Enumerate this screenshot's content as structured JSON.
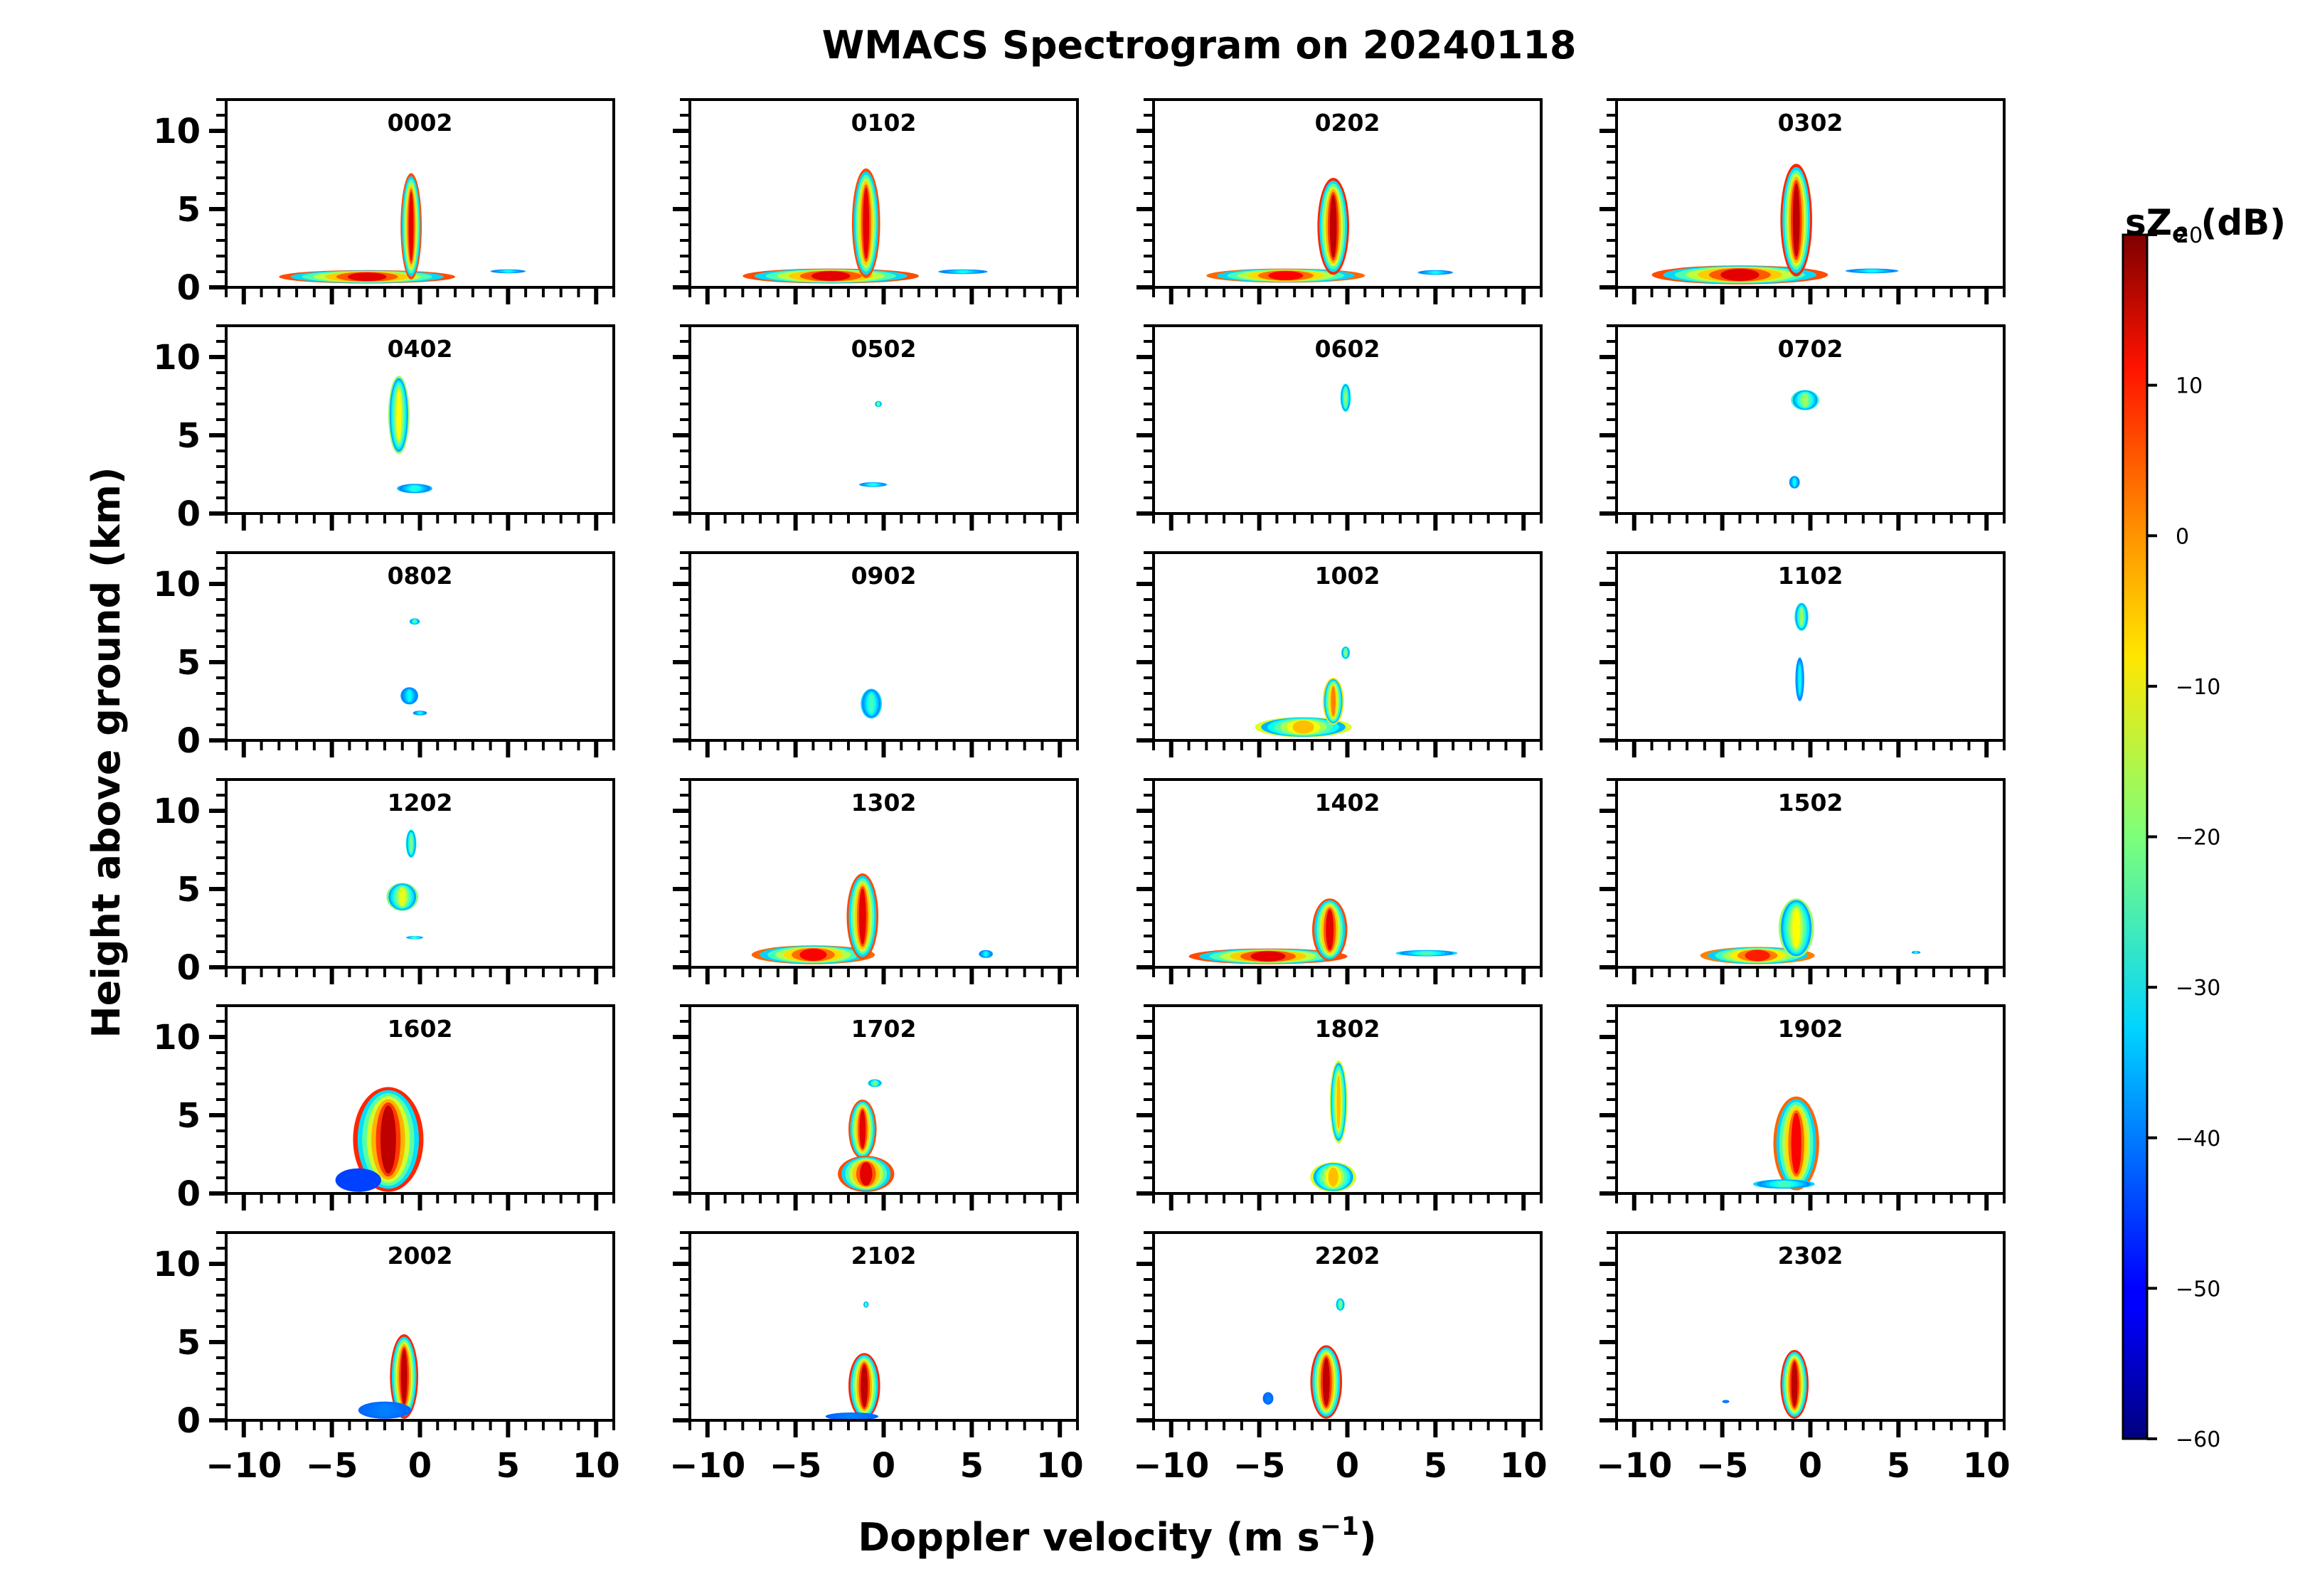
{
  "title": "WMACS Spectrogram on 20240118",
  "xlabel": "Doppler velocity (m s",
  "xlabel_sup": "−1",
  "xlabel_end": ")",
  "ylabel": "Height above ground (km)",
  "colorbar": {
    "label": "sZ",
    "label_sub": "e",
    "label_unit": " (dB)",
    "range": [
      -60,
      20
    ],
    "ticks": [
      20,
      10,
      0,
      -10,
      -20,
      -30,
      -40,
      -50,
      -60
    ],
    "tick_labels": [
      "20",
      "10",
      "0",
      "−10",
      "−20",
      "−30",
      "−40",
      "−50",
      "−60"
    ]
  },
  "chart_data": {
    "type": "heatmap",
    "title": "WMACS Spectrogram on 20240118",
    "xlabel": "Doppler velocity (m s−1)",
    "ylabel": "Height above ground (km)",
    "xlim": [
      -11,
      11
    ],
    "ylim": [
      0,
      12
    ],
    "xticks": [
      -10,
      -5,
      0,
      5,
      10
    ],
    "xtick_labels": [
      "−10",
      "−5",
      "0",
      "5",
      "10"
    ],
    "yticks": [
      0,
      5,
      10
    ],
    "ytick_labels": [
      "0",
      "5",
      "10"
    ],
    "colorbar_range_dB": [
      -60,
      20
    ],
    "panels": [
      {
        "time": "0002",
        "blobs": [
          {
            "v": -3.0,
            "h0": 0.25,
            "h1": 1.1,
            "w": 10.0,
            "peak": 12
          },
          {
            "v": -0.5,
            "h0": 0.5,
            "h1": 7.3,
            "w": 1.2,
            "peak": 12
          },
          {
            "v": 5.0,
            "h0": 0.9,
            "h1": 1.15,
            "w": 2.0,
            "peak": -30
          }
        ]
      },
      {
        "time": "0102",
        "blobs": [
          {
            "v": -3.0,
            "h0": 0.25,
            "h1": 1.2,
            "w": 10.0,
            "peak": 12
          },
          {
            "v": -1.0,
            "h0": 0.6,
            "h1": 7.6,
            "w": 1.6,
            "peak": 12
          },
          {
            "v": 4.5,
            "h0": 0.85,
            "h1": 1.15,
            "w": 2.8,
            "peak": -30
          }
        ]
      },
      {
        "time": "0202",
        "blobs": [
          {
            "v": -3.5,
            "h0": 0.3,
            "h1": 1.2,
            "w": 9.0,
            "peak": 10
          },
          {
            "v": -0.8,
            "h0": 0.8,
            "h1": 7.0,
            "w": 1.8,
            "peak": 15
          },
          {
            "v": 5.0,
            "h0": 0.8,
            "h1": 1.1,
            "w": 2.0,
            "peak": -30
          }
        ]
      },
      {
        "time": "0302",
        "blobs": [
          {
            "v": -4.0,
            "h0": 0.2,
            "h1": 1.4,
            "w": 10.0,
            "peak": 12
          },
          {
            "v": -0.8,
            "h0": 0.7,
            "h1": 7.9,
            "w": 1.8,
            "peak": 15
          },
          {
            "v": 3.5,
            "h0": 0.9,
            "h1": 1.2,
            "w": 3.0,
            "peak": -30
          }
        ]
      },
      {
        "time": "0402",
        "blobs": [
          {
            "v": -1.2,
            "h0": 3.8,
            "h1": 8.8,
            "w": 1.2,
            "peak": -10
          },
          {
            "v": -0.3,
            "h0": 1.3,
            "h1": 1.9,
            "w": 2.0,
            "peak": -28
          }
        ]
      },
      {
        "time": "0502",
        "blobs": [
          {
            "v": -0.3,
            "h0": 6.8,
            "h1": 7.2,
            "w": 0.4,
            "peak": -22
          },
          {
            "v": -0.6,
            "h0": 1.7,
            "h1": 2.0,
            "w": 1.6,
            "peak": -28
          }
        ]
      },
      {
        "time": "0602",
        "blobs": [
          {
            "v": -0.1,
            "h0": 6.5,
            "h1": 8.3,
            "w": 0.6,
            "peak": -20
          }
        ]
      },
      {
        "time": "0702",
        "blobs": [
          {
            "v": -0.3,
            "h0": 6.6,
            "h1": 7.9,
            "w": 1.6,
            "peak": -18
          },
          {
            "v": -0.9,
            "h0": 1.6,
            "h1": 2.4,
            "w": 0.6,
            "peak": -30
          }
        ]
      },
      {
        "time": "0802",
        "blobs": [
          {
            "v": -0.3,
            "h0": 7.4,
            "h1": 7.8,
            "w": 0.6,
            "peak": -24
          },
          {
            "v": -0.6,
            "h0": 2.3,
            "h1": 3.4,
            "w": 1.0,
            "peak": -30
          },
          {
            "v": 0.0,
            "h0": 1.6,
            "h1": 1.9,
            "w": 0.8,
            "peak": -30
          }
        ]
      },
      {
        "time": "0902",
        "blobs": [
          {
            "v": -0.7,
            "h0": 1.4,
            "h1": 3.3,
            "w": 1.2,
            "peak": -25
          }
        ]
      },
      {
        "time": "1002",
        "blobs": [
          {
            "v": -2.5,
            "h0": 0.2,
            "h1": 1.5,
            "w": 5.5,
            "peak": -5
          },
          {
            "v": -0.8,
            "h0": 1.0,
            "h1": 4.0,
            "w": 1.2,
            "peak": 0
          },
          {
            "v": -0.1,
            "h0": 5.2,
            "h1": 6.0,
            "w": 0.5,
            "peak": -20
          }
        ]
      },
      {
        "time": "1102",
        "blobs": [
          {
            "v": -0.5,
            "h0": 7.0,
            "h1": 8.8,
            "w": 0.8,
            "peak": -18
          },
          {
            "v": -0.6,
            "h0": 2.5,
            "h1": 5.3,
            "w": 0.5,
            "peak": -30
          }
        ]
      },
      {
        "time": "1202",
        "blobs": [
          {
            "v": -1.0,
            "h0": 3.6,
            "h1": 5.4,
            "w": 1.8,
            "peak": -12
          },
          {
            "v": -0.5,
            "h0": 7.0,
            "h1": 8.8,
            "w": 0.6,
            "peak": -20
          },
          {
            "v": -0.3,
            "h0": 1.8,
            "h1": 2.0,
            "w": 1.0,
            "peak": -25
          }
        ]
      },
      {
        "time": "1302",
        "blobs": [
          {
            "v": -4.0,
            "h0": 0.2,
            "h1": 1.4,
            "w": 7.0,
            "peak": 10
          },
          {
            "v": -1.2,
            "h0": 0.5,
            "h1": 6.0,
            "w": 1.8,
            "peak": 12
          },
          {
            "v": 5.8,
            "h0": 0.6,
            "h1": 1.1,
            "w": 0.8,
            "peak": -30
          }
        ]
      },
      {
        "time": "1402",
        "blobs": [
          {
            "v": -4.5,
            "h0": 0.2,
            "h1": 1.2,
            "w": 9.0,
            "peak": 12
          },
          {
            "v": -1.0,
            "h0": 0.4,
            "h1": 4.4,
            "w": 2.0,
            "peak": 12
          },
          {
            "v": 4.5,
            "h0": 0.7,
            "h1": 1.1,
            "w": 3.5,
            "peak": -25
          }
        ]
      },
      {
        "time": "1502",
        "blobs": [
          {
            "v": -3.0,
            "h0": 0.2,
            "h1": 1.3,
            "w": 6.5,
            "peak": 8
          },
          {
            "v": -0.8,
            "h0": 0.6,
            "h1": 4.4,
            "w": 2.0,
            "peak": -10
          },
          {
            "v": 6.0,
            "h0": 0.9,
            "h1": 1.0,
            "w": 0.5,
            "peak": -30
          }
        ]
      },
      {
        "time": "1602",
        "blobs": [
          {
            "v": -1.8,
            "h0": 0.1,
            "h1": 6.8,
            "w": 4.0,
            "peak": 15
          },
          {
            "v": -3.5,
            "h0": 0.1,
            "h1": 1.6,
            "w": 2.6,
            "peak": -45
          }
        ]
      },
      {
        "time": "1702",
        "blobs": [
          {
            "v": -1.2,
            "h0": 2.2,
            "h1": 6.0,
            "w": 1.6,
            "peak": 12
          },
          {
            "v": -1.0,
            "h0": 0.1,
            "h1": 2.4,
            "w": 3.2,
            "peak": 12
          },
          {
            "v": -0.5,
            "h0": 6.8,
            "h1": 7.3,
            "w": 0.8,
            "peak": -20
          }
        ]
      },
      {
        "time": "1802",
        "blobs": [
          {
            "v": -0.5,
            "h0": 3.2,
            "h1": 8.5,
            "w": 1.0,
            "peak": -5
          },
          {
            "v": -0.8,
            "h0": 0.1,
            "h1": 2.0,
            "w": 2.6,
            "peak": -5
          }
        ]
      },
      {
        "time": "1902",
        "blobs": [
          {
            "v": -0.8,
            "h0": 0.2,
            "h1": 6.2,
            "w": 2.6,
            "peak": 10
          },
          {
            "v": -1.5,
            "h0": 0.3,
            "h1": 0.9,
            "w": 3.5,
            "peak": -25
          }
        ]
      },
      {
        "time": "2002",
        "blobs": [
          {
            "v": -0.9,
            "h0": 0.1,
            "h1": 5.5,
            "w": 1.6,
            "peak": 15
          },
          {
            "v": -2.0,
            "h0": 0.1,
            "h1": 1.2,
            "w": 3.0,
            "peak": -40
          }
        ]
      },
      {
        "time": "2102",
        "blobs": [
          {
            "v": -1.1,
            "h0": 0.1,
            "h1": 4.3,
            "w": 1.8,
            "peak": 15
          },
          {
            "v": -1.8,
            "h0": 0.0,
            "h1": 0.5,
            "w": 3.0,
            "peak": -40
          },
          {
            "v": -1.0,
            "h0": 7.2,
            "h1": 7.6,
            "w": 0.3,
            "peak": -25
          }
        ]
      },
      {
        "time": "2202",
        "blobs": [
          {
            "v": -1.2,
            "h0": 0.1,
            "h1": 4.8,
            "w": 1.8,
            "peak": 15
          },
          {
            "v": -0.4,
            "h0": 7.0,
            "h1": 7.8,
            "w": 0.5,
            "peak": -20
          },
          {
            "v": -4.5,
            "h0": 1.0,
            "h1": 1.8,
            "w": 0.6,
            "peak": -40
          }
        ]
      },
      {
        "time": "2302",
        "blobs": [
          {
            "v": -0.9,
            "h0": 0.1,
            "h1": 4.5,
            "w": 1.6,
            "peak": 15
          },
          {
            "v": -4.8,
            "h0": 1.1,
            "h1": 1.3,
            "w": 0.4,
            "peak": -40
          }
        ]
      }
    ]
  }
}
